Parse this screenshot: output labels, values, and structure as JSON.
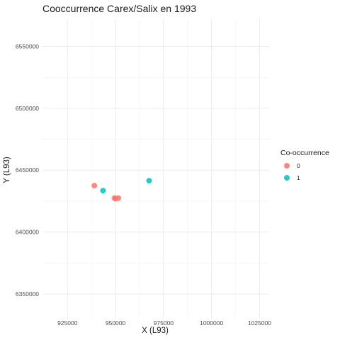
{
  "chart_data": {
    "type": "scatter",
    "title": "Cooccurrence Carex/Salix en 1993",
    "xlabel": "X (L93)",
    "ylabel": "Y (L93)",
    "xlim": [
      912000,
      1030000
    ],
    "ylim": [
      6330000,
      6572000
    ],
    "x_ticks": [
      925000,
      950000,
      975000,
      1000000,
      1025000
    ],
    "y_ticks": [
      6350000,
      6400000,
      6450000,
      6500000,
      6550000
    ],
    "x_tick_labels": [
      "925000",
      "950000",
      "975000",
      "1000000",
      "1025000"
    ],
    "y_tick_labels": [
      "6350000",
      "6400000",
      "6450000",
      "6500000",
      "6550000"
    ],
    "grid": true,
    "legend": {
      "title": "Co-occurrence",
      "position": "right"
    },
    "series": [
      {
        "name": "0",
        "color": "#F8766D",
        "points": [
          {
            "x": 939000,
            "y": 6437500
          },
          {
            "x": 949500,
            "y": 6427500
          },
          {
            "x": 950000,
            "y": 6427000
          },
          {
            "x": 951500,
            "y": 6427500
          }
        ]
      },
      {
        "name": "1",
        "color": "#00BFC4",
        "points": [
          {
            "x": 943500,
            "y": 6433500
          },
          {
            "x": 967500,
            "y": 6441500
          }
        ]
      }
    ]
  }
}
